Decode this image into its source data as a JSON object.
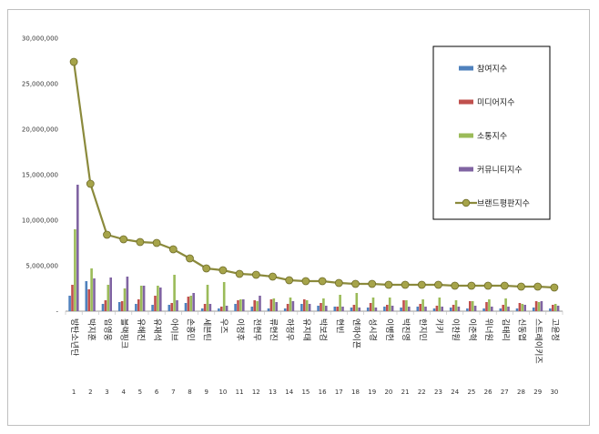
{
  "chart_data": {
    "type": "bar",
    "ylim": [
      0,
      30000000
    ],
    "yticks": [
      "-",
      "5,000,000",
      "10,000,000",
      "15,000,000",
      "20,000,000",
      "25,000,000",
      "30,000,000"
    ],
    "ytick_values": [
      0,
      5000000,
      10000000,
      15000000,
      20000000,
      25000000,
      30000000
    ],
    "grid": false,
    "legend_position": "top-right",
    "categories": [
      "방탄소년단",
      "박지훈",
      "임영웅",
      "블랙핑크",
      "유해진",
      "유재석",
      "아이브",
      "손흥민",
      "세븐틴",
      "우즈",
      "이정후",
      "전현무",
      "류현진",
      "하정우",
      "유지태",
      "박보검",
      "현빈",
      "엔하이픈",
      "성시경",
      "이병헌",
      "박진영",
      "한지민",
      "키키",
      "이찬원",
      "이준혁",
      "위너원",
      "김태리",
      "신동엽",
      "스트레이키즈",
      "고윤정"
    ],
    "index_labels": [
      "1",
      "2",
      "3",
      "4",
      "5",
      "6",
      "7",
      "8",
      "9",
      "10",
      "11",
      "12",
      "13",
      "14",
      "15",
      "16",
      "17",
      "18",
      "19",
      "20",
      "21",
      "22",
      "23",
      "24",
      "25",
      "26",
      "27",
      "28",
      "29",
      "30"
    ],
    "series": [
      {
        "name": "참여지수",
        "kind": "bar",
        "color": "#4f81bd",
        "values": [
          1700000,
          3300000,
          800000,
          1000000,
          800000,
          700000,
          700000,
          900000,
          300000,
          300000,
          800000,
          500000,
          300000,
          300000,
          800000,
          600000,
          500000,
          400000,
          400000,
          500000,
          400000,
          500000,
          300000,
          400000,
          300000,
          300000,
          300000,
          300000,
          400000,
          300000
        ]
      },
      {
        "name": "미디어지수",
        "kind": "bar",
        "color": "#c0504d",
        "values": [
          2900000,
          2400000,
          1200000,
          1100000,
          1300000,
          1700000,
          900000,
          1600000,
          800000,
          500000,
          1200000,
          1200000,
          1300000,
          800000,
          1300000,
          900000,
          500000,
          700000,
          900000,
          700000,
          1200000,
          800000,
          600000,
          700000,
          1100000,
          1000000,
          700000,
          900000,
          1100000,
          700000
        ]
      },
      {
        "name": "소통지수",
        "kind": "bar",
        "color": "#9bbb59",
        "values": [
          9000000,
          4700000,
          2900000,
          2500000,
          2800000,
          2800000,
          4000000,
          1700000,
          2900000,
          3200000,
          1300000,
          1100000,
          1400000,
          1500000,
          1200000,
          1400000,
          1800000,
          2000000,
          1500000,
          1500000,
          1200000,
          1300000,
          1500000,
          1200000,
          1100000,
          1300000,
          1400000,
          800000,
          1000000,
          800000
        ]
      },
      {
        "name": "커뮤니티지수",
        "kind": "bar",
        "color": "#8064a2",
        "values": [
          13900000,
          3600000,
          3700000,
          3800000,
          2800000,
          2600000,
          1200000,
          2000000,
          800000,
          600000,
          1300000,
          1700000,
          1000000,
          1100000,
          800000,
          600000,
          500000,
          400000,
          400000,
          600000,
          500000,
          500000,
          500000,
          500000,
          600000,
          500000,
          500000,
          700000,
          1100000,
          600000
        ]
      },
      {
        "name": "브랜드평판지수",
        "kind": "line",
        "color": "#8b8a3c",
        "values": [
          27400000,
          14000000,
          8400000,
          7900000,
          7600000,
          7500000,
          6800000,
          5800000,
          4700000,
          4500000,
          4100000,
          4000000,
          3800000,
          3400000,
          3300000,
          3300000,
          3100000,
          3000000,
          3000000,
          2900000,
          2900000,
          2900000,
          2900000,
          2800000,
          2800000,
          2800000,
          2800000,
          2700000,
          2700000,
          2600000
        ]
      }
    ]
  }
}
